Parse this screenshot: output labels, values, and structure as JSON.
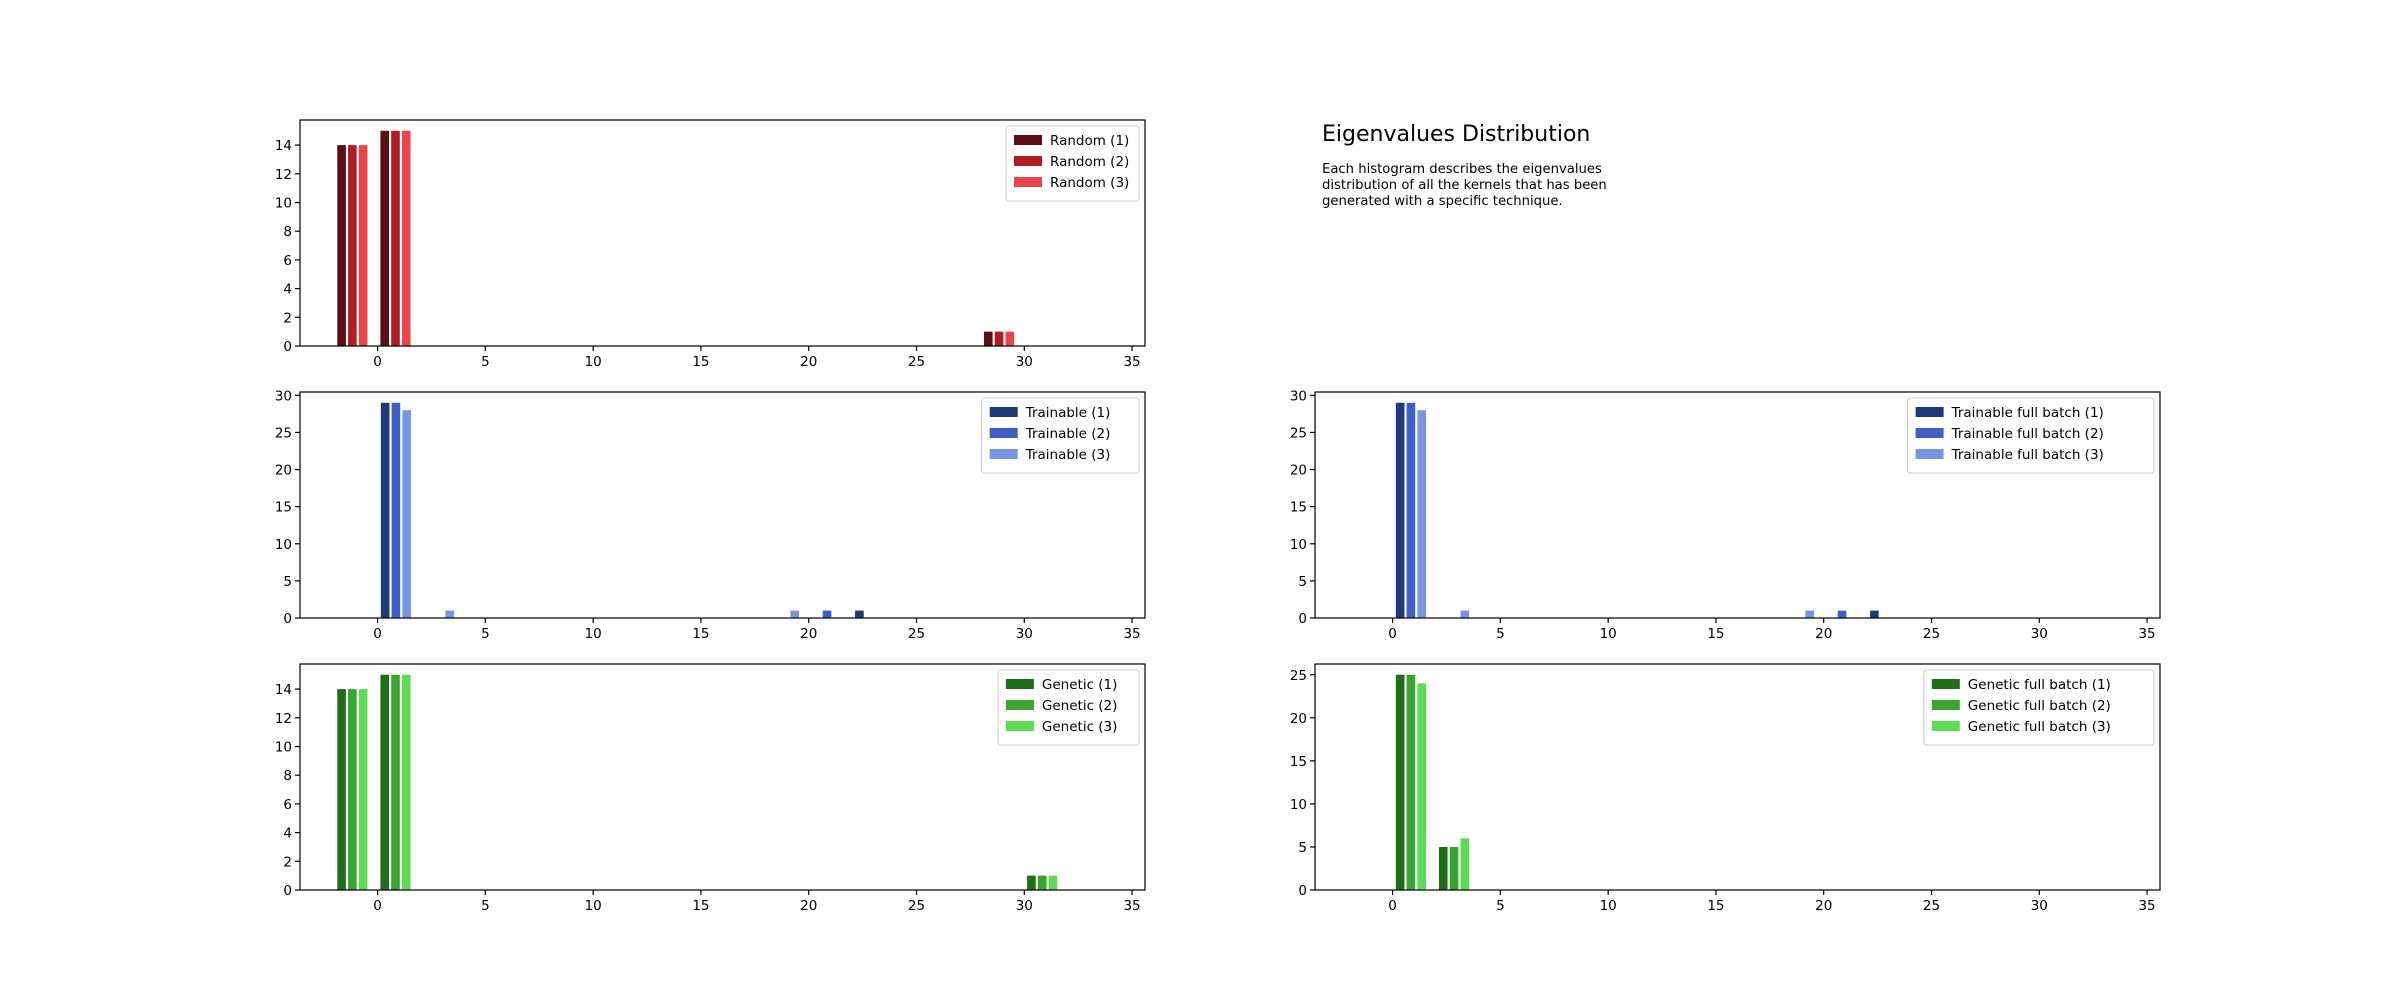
{
  "info": {
    "title": "Eigenvalues Distribution",
    "description": "Each histogram describes the eigenvalues distribution of all the kernels that has been generated with a specific technique."
  },
  "chart_data": [
    {
      "type": "bar",
      "xlim": [
        -3.6,
        35.6
      ],
      "xticks": [
        0,
        5,
        10,
        15,
        20,
        25,
        30,
        35
      ],
      "ylim": [
        0,
        15.75
      ],
      "yticks": [
        0,
        2,
        4,
        6,
        8,
        10,
        12,
        14
      ],
      "legend_position": "top-right",
      "bar_width": 0.4,
      "series": [
        {
          "name": "Random (1)",
          "color": "#5c0f12",
          "bins": [
            {
              "x": -1.67,
              "value": 14
            },
            {
              "x": 0.33,
              "value": 15
            },
            {
              "x": 28.33,
              "value": 1
            }
          ]
        },
        {
          "name": "Random (2)",
          "color": "#b01e24",
          "bins": [
            {
              "x": -1.17,
              "value": 14
            },
            {
              "x": 0.83,
              "value": 15
            },
            {
              "x": 28.83,
              "value": 1
            }
          ]
        },
        {
          "name": "Random (3)",
          "color": "#e8464a",
          "bins": [
            {
              "x": -0.67,
              "value": 14
            },
            {
              "x": 1.33,
              "value": 15
            },
            {
              "x": 29.33,
              "value": 1
            }
          ]
        }
      ]
    },
    {
      "type": "bar",
      "xlim": [
        -3.6,
        35.6
      ],
      "xticks": [
        0,
        5,
        10,
        15,
        20,
        25,
        30,
        35
      ],
      "ylim": [
        0,
        30.45
      ],
      "yticks": [
        0,
        5,
        10,
        15,
        20,
        25,
        30
      ],
      "legend_position": "top-right",
      "bar_width": 0.4,
      "series": [
        {
          "name": "Trainable (1)",
          "color": "#1f3a7a",
          "bins": [
            {
              "x": 0.35,
              "value": 29
            },
            {
              "x": 22.35,
              "value": 1
            }
          ]
        },
        {
          "name": "Trainable (2)",
          "color": "#3f5fc4",
          "bins": [
            {
              "x": 0.85,
              "value": 29
            },
            {
              "x": 20.85,
              "value": 1
            }
          ]
        },
        {
          "name": "Trainable (3)",
          "color": "#7895e4",
          "bins": [
            {
              "x": 1.35,
              "value": 28
            },
            {
              "x": 3.35,
              "value": 1
            },
            {
              "x": 19.35,
              "value": 1
            }
          ]
        }
      ]
    },
    {
      "type": "bar",
      "xlim": [
        -3.6,
        35.6
      ],
      "xticks": [
        0,
        5,
        10,
        15,
        20,
        25,
        30,
        35
      ],
      "ylim": [
        0,
        15.75
      ],
      "yticks": [
        0,
        2,
        4,
        6,
        8,
        10,
        12,
        14
      ],
      "legend_position": "top-right",
      "bar_width": 0.4,
      "series": [
        {
          "name": "Genetic (1)",
          "color": "#1f6e1a",
          "bins": [
            {
              "x": -1.67,
              "value": 14
            },
            {
              "x": 0.33,
              "value": 15
            },
            {
              "x": 30.33,
              "value": 1
            }
          ]
        },
        {
          "name": "Genetic (2)",
          "color": "#37a52f",
          "bins": [
            {
              "x": -1.17,
              "value": 14
            },
            {
              "x": 0.83,
              "value": 15
            },
            {
              "x": 30.83,
              "value": 1
            }
          ]
        },
        {
          "name": "Genetic (3)",
          "color": "#5fdc55",
          "bins": [
            {
              "x": -0.67,
              "value": 14
            },
            {
              "x": 1.33,
              "value": 15
            },
            {
              "x": 31.33,
              "value": 1
            }
          ]
        }
      ]
    },
    {
      "type": "bar",
      "xlim": [
        -3.6,
        35.6
      ],
      "xticks": [
        0,
        5,
        10,
        15,
        20,
        25,
        30,
        35
      ],
      "ylim": [
        0,
        30.45
      ],
      "yticks": [
        0,
        5,
        10,
        15,
        20,
        25,
        30
      ],
      "legend_position": "top-right",
      "bar_width": 0.4,
      "series": [
        {
          "name": "Trainable full batch (1)",
          "color": "#1f3a7a",
          "bins": [
            {
              "x": 0.35,
              "value": 29
            },
            {
              "x": 22.35,
              "value": 1
            }
          ]
        },
        {
          "name": "Trainable full batch (2)",
          "color": "#3f5fc4",
          "bins": [
            {
              "x": 0.85,
              "value": 29
            },
            {
              "x": 20.85,
              "value": 1
            }
          ]
        },
        {
          "name": "Trainable full batch (3)",
          "color": "#7895e4",
          "bins": [
            {
              "x": 1.35,
              "value": 28
            },
            {
              "x": 3.35,
              "value": 1
            },
            {
              "x": 19.35,
              "value": 1
            }
          ]
        }
      ]
    },
    {
      "type": "bar",
      "xlim": [
        -3.6,
        35.6
      ],
      "xticks": [
        0,
        5,
        10,
        15,
        20,
        25,
        30,
        35
      ],
      "ylim": [
        0,
        26.25
      ],
      "yticks": [
        0,
        5,
        10,
        15,
        20,
        25
      ],
      "legend_position": "top-right",
      "bar_width": 0.4,
      "series": [
        {
          "name": "Genetic full batch (1)",
          "color": "#1f6e1a",
          "bins": [
            {
              "x": 0.35,
              "value": 25
            },
            {
              "x": 2.35,
              "value": 5
            }
          ]
        },
        {
          "name": "Genetic full batch (2)",
          "color": "#37a52f",
          "bins": [
            {
              "x": 0.85,
              "value": 25
            },
            {
              "x": 2.85,
              "value": 5
            }
          ]
        },
        {
          "name": "Genetic full batch (3)",
          "color": "#5fdc55",
          "bins": [
            {
              "x": 1.35,
              "value": 24
            },
            {
              "x": 3.35,
              "value": 6
            }
          ]
        }
      ]
    }
  ]
}
